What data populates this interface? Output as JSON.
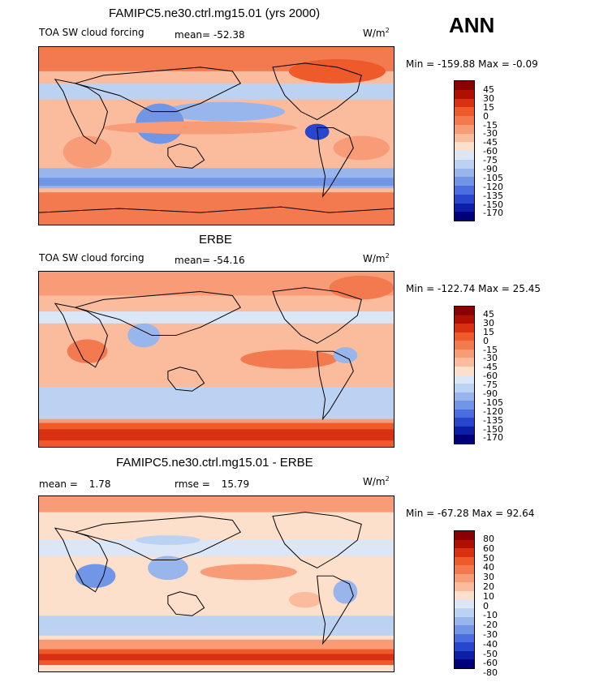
{
  "figure": {
    "season": "ANN",
    "units": "W/m",
    "units_sup": "2"
  },
  "panels": [
    {
      "title": "FAMIPC5.ne30.ctrl.mg15.01 (yrs 2000)",
      "field": "TOA SW cloud forcing",
      "mean_label": "mean=",
      "mean_value": "-52.38",
      "min_label": "Min =",
      "min_value": "-159.88",
      "max_label": "Max =",
      "max_value": "-0.09",
      "levels": [
        "45",
        "30",
        "15",
        "0",
        "-15",
        "-30",
        "-45",
        "-60",
        "-75",
        "-90",
        "-105",
        "-120",
        "-135",
        "-150",
        "-170"
      ]
    },
    {
      "title": "ERBE",
      "field": "TOA SW cloud forcing",
      "mean_label": "mean=",
      "mean_value": "-54.16",
      "min_label": "Min =",
      "min_value": "-122.74",
      "max_label": "Max =",
      "max_value": "25.45",
      "levels": [
        "45",
        "30",
        "15",
        "0",
        "-15",
        "-30",
        "-45",
        "-60",
        "-75",
        "-90",
        "-105",
        "-120",
        "-135",
        "-150",
        "-170"
      ]
    },
    {
      "title": "FAMIPC5.ne30.ctrl.mg15.01 - ERBE",
      "mean_label": "mean =",
      "mean_value": "1.78",
      "rmse_label": "rmse =",
      "rmse_value": "15.79",
      "min_label": "Min =",
      "min_value": "-67.28",
      "max_label": "Max =",
      "max_value": "92.64",
      "levels": [
        "80",
        "60",
        "50",
        "40",
        "30",
        "20",
        "10",
        "0",
        "-10",
        "-20",
        "-30",
        "-40",
        "-50",
        "-60",
        "-80"
      ]
    }
  ],
  "colors": {
    "colorbar": [
      "#8b0000",
      "#b01000",
      "#d83010",
      "#ee5a2a",
      "#f37a4e",
      "#f89c78",
      "#fbbc9e",
      "#fde0cc",
      "#dbe6f6",
      "#bcd2f2",
      "#98b6ec",
      "#7296e6",
      "#4a6ee0",
      "#2846cc",
      "#0a1ea6",
      "#00007a"
    ]
  }
}
